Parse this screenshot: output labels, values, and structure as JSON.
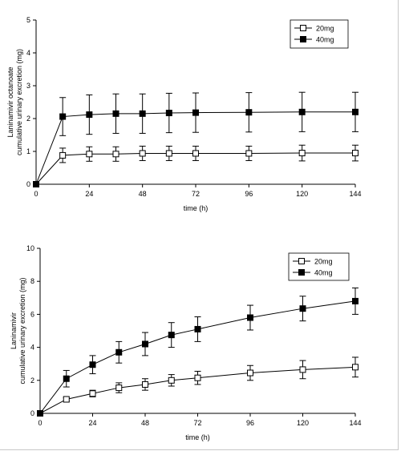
{
  "chart_data": [
    {
      "type": "line",
      "xlabel": "time (h)",
      "ylabel_lines": [
        "Laninamivir octanoate",
        "cumulative urinary excretion (mg)"
      ],
      "x": [
        0,
        12,
        24,
        36,
        48,
        60,
        72,
        96,
        120,
        144
      ],
      "xticks": [
        0,
        24,
        48,
        72,
        96,
        120,
        144
      ],
      "xlim": [
        0,
        144
      ],
      "ylim": [
        0,
        5
      ],
      "yticks": [
        0,
        1,
        2,
        3,
        4,
        5
      ],
      "legend_position": "top-right",
      "series": [
        {
          "name": "20mg",
          "marker": "open-square",
          "values": [
            0,
            0.88,
            0.92,
            0.92,
            0.94,
            0.94,
            0.94,
            0.94,
            0.95,
            0.95
          ],
          "err": [
            0,
            0.22,
            0.22,
            0.22,
            0.22,
            0.22,
            0.22,
            0.22,
            0.24,
            0.24
          ]
        },
        {
          "name": "40mg",
          "marker": "filled-square",
          "values": [
            0,
            2.06,
            2.12,
            2.15,
            2.15,
            2.17,
            2.18,
            2.19,
            2.2,
            2.2
          ],
          "err": [
            0,
            0.58,
            0.6,
            0.6,
            0.6,
            0.6,
            0.6,
            0.6,
            0.6,
            0.6
          ]
        }
      ]
    },
    {
      "type": "line",
      "xlabel": "time (h)",
      "ylabel_lines": [
        "Laninamivir",
        "cumulative urinary excretion (mg)"
      ],
      "x": [
        0,
        12,
        24,
        36,
        48,
        60,
        72,
        96,
        120,
        144
      ],
      "xticks": [
        0,
        24,
        48,
        72,
        96,
        120,
        144
      ],
      "xlim": [
        0,
        144
      ],
      "ylim": [
        0,
        10
      ],
      "yticks": [
        0,
        2,
        4,
        6,
        8,
        10
      ],
      "legend_position": "top-right",
      "series": [
        {
          "name": "20mg",
          "marker": "open-square",
          "values": [
            0,
            0.85,
            1.2,
            1.55,
            1.75,
            2.0,
            2.15,
            2.45,
            2.65,
            2.8
          ],
          "err": [
            0,
            0.1,
            0.2,
            0.3,
            0.35,
            0.35,
            0.4,
            0.45,
            0.55,
            0.6
          ]
        },
        {
          "name": "40mg",
          "marker": "filled-square",
          "values": [
            0,
            2.1,
            2.95,
            3.7,
            4.2,
            4.75,
            5.1,
            5.8,
            6.35,
            6.8
          ],
          "err": [
            0,
            0.5,
            0.55,
            0.65,
            0.7,
            0.75,
            0.75,
            0.75,
            0.75,
            0.8
          ]
        }
      ]
    }
  ]
}
